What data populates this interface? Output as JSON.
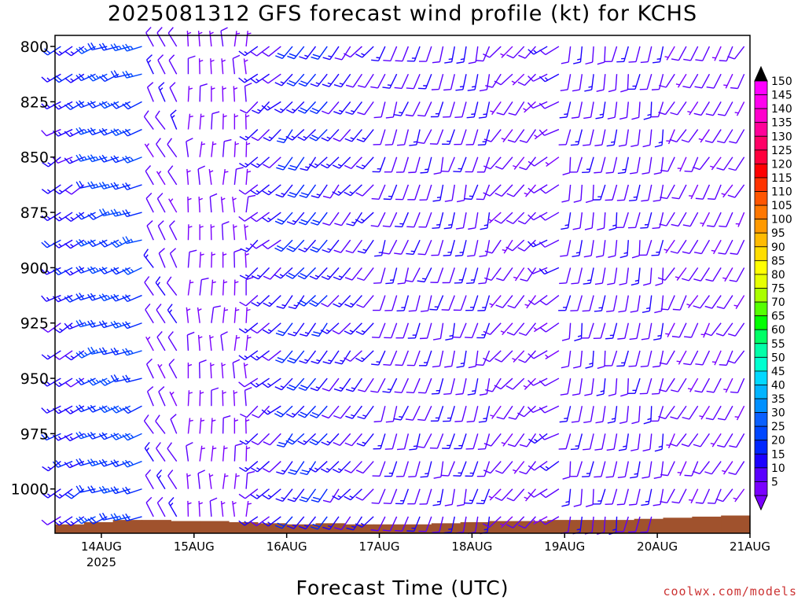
{
  "title": "2025081312 GFS forecast wind profile (kt) for KCHS",
  "xlabel": "Forecast Time (UTC)",
  "credit": "coolwx.com/models",
  "chart_data": {
    "type": "wind-barb-profile",
    "title": "2025081312 GFS forecast wind profile (kt) for KCHS",
    "xlabel": "Forecast Time (UTC)",
    "ylabel": "",
    "y_axis": {
      "reversed": true,
      "range": [
        795,
        1020
      ],
      "ticks": [
        800,
        825,
        850,
        875,
        900,
        925,
        950,
        975,
        1000
      ]
    },
    "x_axis": {
      "range": [
        "2025-08-13T12:00Z",
        "2025-08-21T00:00Z"
      ],
      "tick_labels": [
        "14AUG",
        "15AUG",
        "16AUG",
        "17AUG",
        "18AUG",
        "19AUG",
        "20AUG",
        "21AUG"
      ],
      "year_label": "2025"
    },
    "levels": [
      800,
      812.5,
      825,
      837.5,
      850,
      862.5,
      875,
      887.5,
      900,
      912.5,
      925,
      937.5,
      950,
      962.5,
      975,
      987.5,
      1000,
      1012.5
    ],
    "colorbar": {
      "values": [
        5,
        10,
        15,
        20,
        25,
        30,
        35,
        40,
        45,
        50,
        55,
        60,
        65,
        70,
        75,
        80,
        85,
        90,
        95,
        100,
        105,
        110,
        115,
        120,
        125,
        130,
        135,
        140,
        145,
        150
      ],
      "colors": [
        "#7a00ff",
        "#5a00ff",
        "#1c00ff",
        "#0026ff",
        "#0047ff",
        "#0a60ff",
        "#0090ff",
        "#00b4ff",
        "#00d8ff",
        "#00ffd0",
        "#00ffa8",
        "#00ff66",
        "#00ff00",
        "#55ff00",
        "#aaff00",
        "#e6ff00",
        "#ffff00",
        "#ffdd00",
        "#ffbb00",
        "#ff9900",
        "#ff7700",
        "#ff5500",
        "#ff3300",
        "#ff0000",
        "#ff003c",
        "#ff0066",
        "#ff0099",
        "#ff00cc",
        "#ff00ee",
        "#ff00ff"
      ],
      "triangle_low": "#7a00ff",
      "triangle_high": "#000000"
    },
    "segments": [
      {
        "t_start": 0,
        "t_end": 8,
        "speed": 15,
        "dir": 240
      },
      {
        "t_start": 8,
        "t_end": 24,
        "speed": 22,
        "dir": 250
      },
      {
        "t_start": 24,
        "t_end": 34,
        "speed": 10,
        "dir": 330
      },
      {
        "t_start": 34,
        "t_end": 50,
        "speed": 6,
        "dir": 360
      },
      {
        "t_start": 50,
        "t_end": 60,
        "speed": 13,
        "dir": 230
      },
      {
        "t_start": 60,
        "t_end": 72,
        "speed": 18,
        "dir": 220
      },
      {
        "t_start": 72,
        "t_end": 84,
        "speed": 13,
        "dir": 220
      },
      {
        "t_start": 84,
        "t_end": 100,
        "speed": 11,
        "dir": 200
      },
      {
        "t_start": 100,
        "t_end": 114,
        "speed": 12,
        "dir": 195
      },
      {
        "t_start": 114,
        "t_end": 126,
        "speed": 9,
        "dir": 220
      },
      {
        "t_start": 126,
        "t_end": 132,
        "speed": 10,
        "dir": 240
      },
      {
        "t_start": 132,
        "t_end": 160,
        "speed": 11,
        "dir": 190
      },
      {
        "t_start": 160,
        "t_end": 180,
        "speed": 9,
        "dir": 210
      }
    ],
    "terrain": {
      "color": "#a0522d",
      "surface_pressure_series": [
        1016,
        1015,
        1014,
        1014,
        1014.5,
        1014.5,
        1015,
        1015.5,
        1016,
        1015.5,
        1016,
        1016,
        1016,
        1015.5,
        1015,
        1014.5,
        1014.5,
        1014,
        1014,
        1014,
        1013.5,
        1013,
        1012.5,
        1012
      ]
    }
  }
}
